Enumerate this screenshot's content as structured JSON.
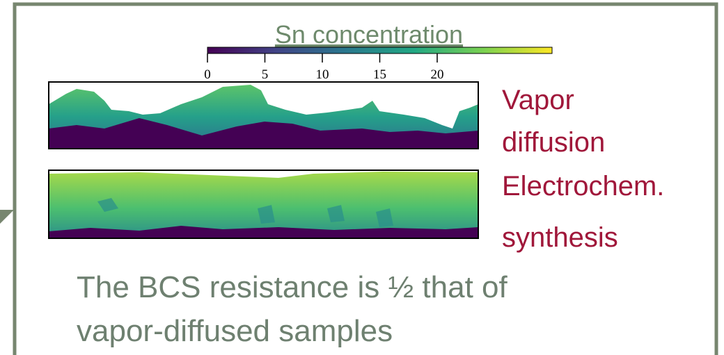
{
  "colorbar": {
    "title": "Sn concentration",
    "lim": [
      0,
      30
    ],
    "ticks": [
      0,
      5,
      10,
      15,
      20
    ]
  },
  "labels": [
    {
      "lines": [
        "Vapor",
        "diffusion"
      ]
    },
    {
      "lines": [
        "Electrochem.",
        "synthesis"
      ]
    }
  ],
  "caption": {
    "lines": [
      "The BCS resistance is ½ that of",
      "vapor-diffused samples"
    ]
  }
}
